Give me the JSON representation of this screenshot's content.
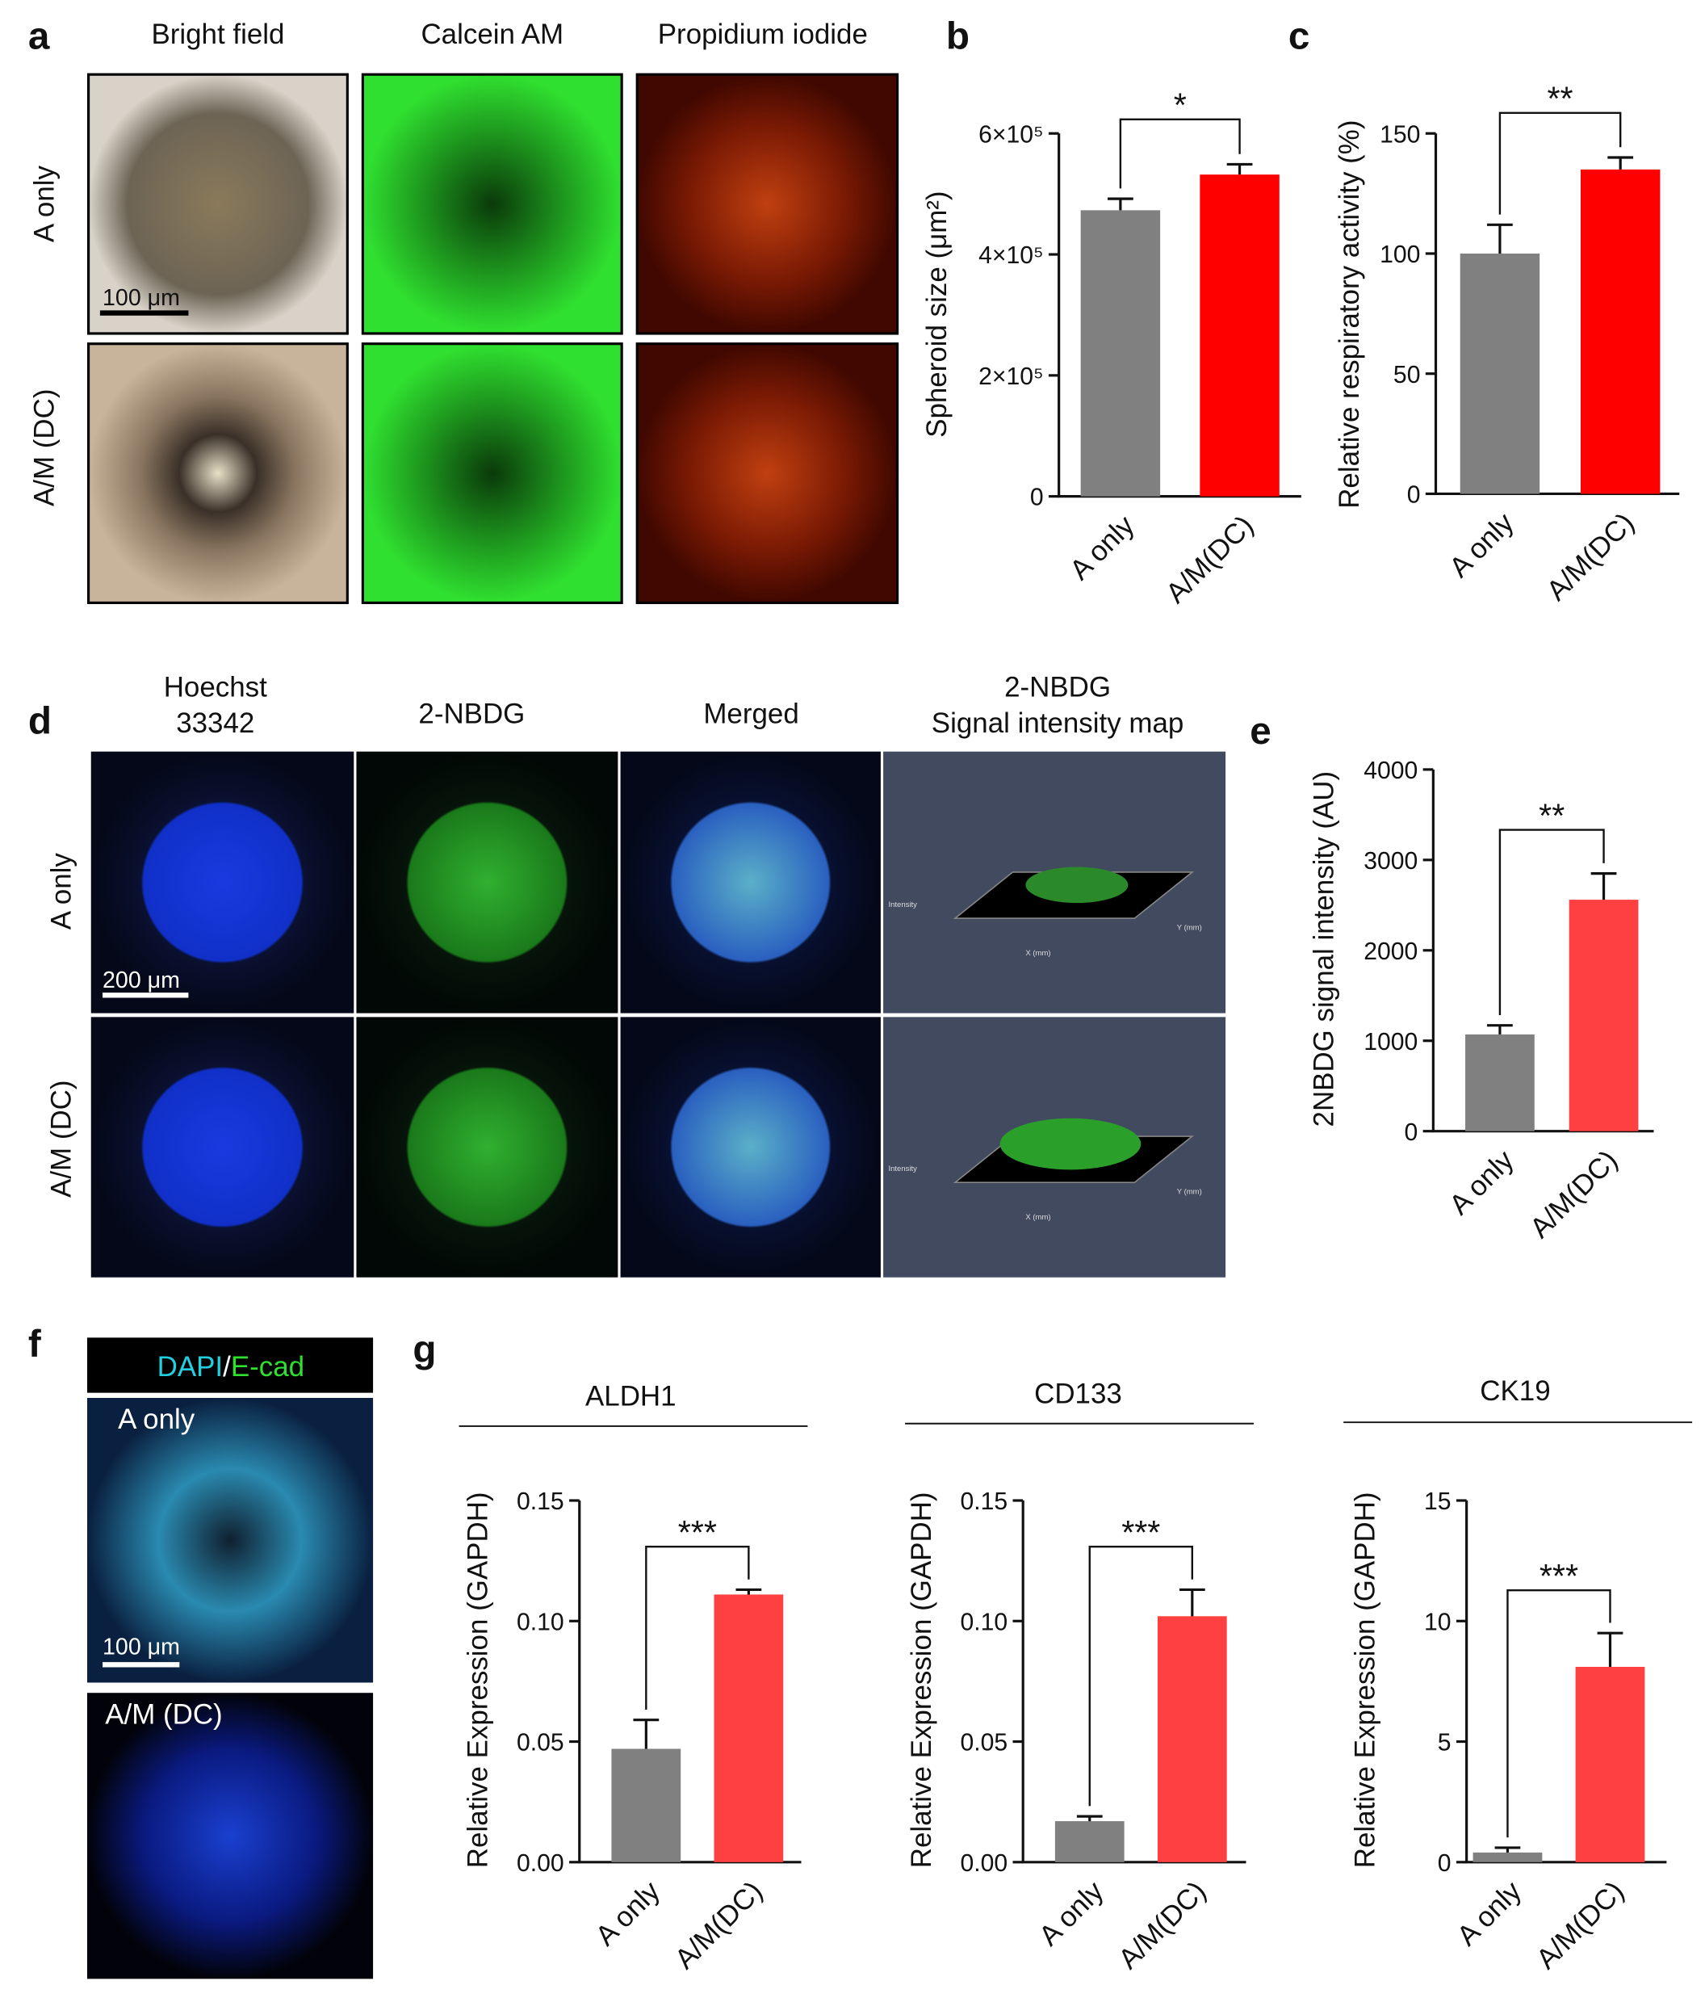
{
  "panel_labels": [
    "a",
    "b",
    "c",
    "d",
    "e",
    "f",
    "g"
  ],
  "panel_a": {
    "columns": [
      "Bright field",
      "Calcein AM",
      "Propidium iodide"
    ],
    "rows": [
      "A only",
      "A/M (DC)"
    ],
    "scale_bar": "100 μm"
  },
  "panel_d": {
    "columns": [
      [
        "Hoechst",
        "33342"
      ],
      [
        "2-NBDG"
      ],
      [
        "Merged"
      ],
      [
        "2-NBDG",
        "Signal intensity map"
      ]
    ],
    "rows": [
      "A only",
      "A/M (DC)"
    ],
    "scale_bar": "200 μm",
    "map_labels": {
      "y": "Intensity",
      "x": "X (mm)",
      "z": "Y (mm)"
    }
  },
  "panel_f": {
    "stain": [
      "DAPI",
      "/",
      "E-cad"
    ],
    "rows": [
      "A only",
      "A/M (DC)"
    ],
    "scale_bar": "100 μm"
  },
  "chart_data": [
    {
      "type": "bar",
      "ylabel": "Spheroid size (μm²)",
      "categories": [
        "A only",
        "A/M(DC)"
      ],
      "values": [
        473000,
        532000
      ],
      "errors": [
        19000,
        17000
      ],
      "colors": [
        "#808080",
        "#ff0000"
      ],
      "ylim": [
        0,
        600000
      ],
      "yticks": [
        0,
        {
          "value": 200000,
          "label": "2×10⁵"
        },
        {
          "value": 400000,
          "label": "4×10⁵"
        },
        {
          "value": 600000,
          "label": "6×10⁵"
        }
      ],
      "significance": "*"
    },
    {
      "type": "bar",
      "ylabel": "Relative respiratory activity (%)",
      "categories": [
        "A only",
        "A/M(DC)"
      ],
      "values": [
        100,
        135
      ],
      "errors": [
        12,
        5
      ],
      "colors": [
        "#808080",
        "#ff0000"
      ],
      "ylim": [
        0,
        150
      ],
      "yticks": [
        0,
        50,
        100,
        150
      ],
      "significance": "**"
    },
    {
      "type": "bar",
      "ylabel": "2NBDG signal intensity (AU)",
      "categories": [
        "A only",
        "A/M(DC)"
      ],
      "values": [
        1070,
        2560
      ],
      "errors": [
        100,
        290
      ],
      "colors": [
        "#808080",
        "#ff4040"
      ],
      "ylim": [
        0,
        4000
      ],
      "yticks": [
        0,
        1000,
        2000,
        3000,
        4000
      ],
      "significance": "**"
    },
    {
      "type": "bar",
      "title": "ALDH1",
      "ylabel": "Relative Expression (GAPDH)",
      "categories": [
        "A only",
        "A/M(DC)"
      ],
      "values": [
        0.047,
        0.111
      ],
      "errors": [
        0.012,
        0.002
      ],
      "colors": [
        "#808080",
        "#ff4040"
      ],
      "ylim": [
        0,
        0.15
      ],
      "yticks": [
        {
          "value": 0,
          "label": "0.00"
        },
        {
          "value": 0.05,
          "label": "0.05"
        },
        {
          "value": 0.1,
          "label": "0.10"
        },
        {
          "value": 0.15,
          "label": "0.15"
        }
      ],
      "significance": "***"
    },
    {
      "type": "bar",
      "title": "CD133",
      "ylabel": "Relative Expression (GAPDH)",
      "categories": [
        "A only",
        "A/M(DC)"
      ],
      "values": [
        0.017,
        0.102
      ],
      "errors": [
        0.002,
        0.011
      ],
      "colors": [
        "#808080",
        "#ff4040"
      ],
      "ylim": [
        0,
        0.15
      ],
      "yticks": [
        {
          "value": 0,
          "label": "0.00"
        },
        {
          "value": 0.05,
          "label": "0.05"
        },
        {
          "value": 0.1,
          "label": "0.10"
        },
        {
          "value": 0.15,
          "label": "0.15"
        }
      ],
      "significance": "***"
    },
    {
      "type": "bar",
      "title": "CK19",
      "ylabel": "Relative Expression (GAPDH)",
      "categories": [
        "A only",
        "A/M(DC)"
      ],
      "values": [
        0.4,
        8.1
      ],
      "errors": [
        0.2,
        1.4
      ],
      "colors": [
        "#808080",
        "#ff4040"
      ],
      "ylim": [
        0,
        15
      ],
      "yticks": [
        0,
        5,
        10,
        15
      ],
      "significance": "***"
    }
  ]
}
